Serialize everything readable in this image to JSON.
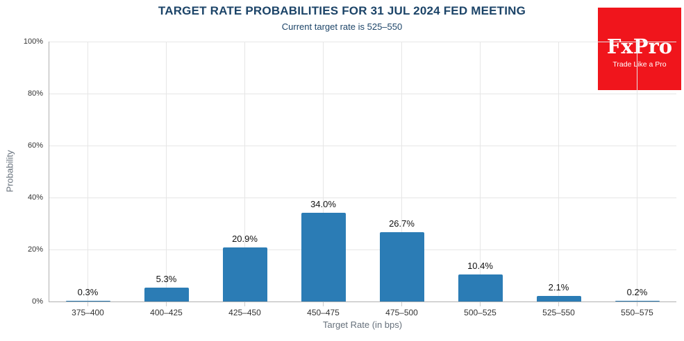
{
  "logo": {
    "name": "FxPro",
    "tagline": "Trade Like a Pro"
  },
  "chart_data": {
    "type": "bar",
    "title": "TARGET RATE PROBABILITIES FOR 31 JUL 2024 FED MEETING",
    "subtitle": "Current target rate is 525–550",
    "xlabel": "Target Rate (in bps)",
    "ylabel": "Probability",
    "categories": [
      "375–400",
      "400–425",
      "425–450",
      "450–475",
      "475–500",
      "500–525",
      "525–550",
      "550–575"
    ],
    "values": [
      0.3,
      5.3,
      20.9,
      34.0,
      26.7,
      10.4,
      2.1,
      0.2
    ],
    "value_labels": [
      "0.3%",
      "5.3%",
      "20.9%",
      "34.0%",
      "26.7%",
      "10.4%",
      "2.1%",
      "0.2%"
    ],
    "ylim": [
      0,
      100
    ],
    "yticks": [
      0,
      20,
      40,
      60,
      80,
      100
    ],
    "ytick_labels": [
      "0%",
      "20%",
      "40%",
      "60%",
      "80%",
      "100%"
    ],
    "grid": true,
    "legend": "none",
    "bar_color": "#2b7cb5"
  },
  "colors": {
    "bar": "#2b7cb5",
    "title_text": "#1c4468",
    "value_label": "#111111",
    "tick_label": "#333333",
    "axis_title": "#66707b",
    "grid_line": "#e6e6e6",
    "axis_line": "#b0b0b0",
    "tick_mark": "#cccccc",
    "logo_bg": "#f0151c",
    "logo_text": "#ffffff",
    "background": "#ffffff"
  }
}
